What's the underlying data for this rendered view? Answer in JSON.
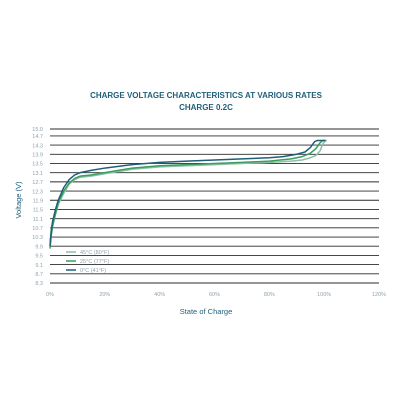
{
  "chart_data": {
    "type": "line",
    "title": "CHARGE VOLTAGE CHARACTERISTICS AT VARIOUS RATES",
    "subtitle": "CHARGE 0.2C",
    "xlabel": "State of Charge",
    "ylabel": "Voltage (V)",
    "xlim": [
      0,
      120
    ],
    "ylim": [
      8.3,
      15.0
    ],
    "x_ticks": [
      0,
      20,
      40,
      60,
      80,
      100,
      120
    ],
    "x_tick_labels": [
      "0%",
      "20%",
      "40%",
      "60%",
      "80%",
      "100%",
      "120%"
    ],
    "y_ticks": [
      8.3,
      8.7,
      9.1,
      9.5,
      9.9,
      10.3,
      10.7,
      11.1,
      11.5,
      11.9,
      12.3,
      12.7,
      13.1,
      13.5,
      13.9,
      14.3,
      14.7,
      15.0
    ],
    "y_tick_labels": [
      "8.3",
      "8.7",
      "9.1",
      "9.5",
      "9.9",
      "10.3",
      "10.7",
      "11.1",
      "11.5",
      "11.9",
      "12.3",
      "12.7",
      "13.1",
      "13.5",
      "13.9",
      "14.3",
      "14.7",
      "15.0"
    ],
    "grid": {
      "horizontal": true,
      "vertical": false
    },
    "legend_position": "lower-left",
    "series": [
      {
        "name": "45°C (80°F)",
        "color": "#8fbfa8",
        "x": [
          0,
          0.5,
          1,
          2,
          3,
          5,
          7,
          9,
          11,
          15,
          20,
          30,
          40,
          50,
          60,
          70,
          80,
          88,
          92,
          95,
          97,
          98.5,
          99.5,
          100.5,
          101
        ],
        "y": [
          10.1,
          10.7,
          11.0,
          11.3,
          11.7,
          12.2,
          12.6,
          12.8,
          12.9,
          12.95,
          13.05,
          13.25,
          13.35,
          13.4,
          13.45,
          13.5,
          13.55,
          13.6,
          13.65,
          13.75,
          13.85,
          14.05,
          14.35,
          14.5,
          14.5
        ]
      },
      {
        "name": "25°C (77°F)",
        "color": "#3a9e5e",
        "x": [
          0,
          0.5,
          1,
          2,
          3,
          5,
          7,
          9,
          11,
          15,
          20,
          30,
          40,
          50,
          60,
          70,
          80,
          88,
          92,
          95,
          97,
          98.5,
          99.5,
          100.5
        ],
        "y": [
          9.8,
          10.4,
          10.8,
          11.3,
          11.8,
          12.3,
          12.65,
          12.85,
          12.95,
          13.0,
          13.1,
          13.3,
          13.4,
          13.45,
          13.5,
          13.55,
          13.6,
          13.7,
          13.8,
          13.95,
          14.15,
          14.4,
          14.5,
          14.5
        ]
      },
      {
        "name": "0°C (41°F)",
        "color": "#1f5f7a",
        "x": [
          0,
          0.5,
          1,
          2,
          3,
          5,
          7,
          9,
          11,
          15,
          20,
          30,
          40,
          50,
          60,
          70,
          80,
          85,
          90,
          93,
          95,
          96.5,
          97.5,
          99.5,
          100.5
        ],
        "y": [
          9.9,
          10.6,
          11.0,
          11.5,
          11.9,
          12.45,
          12.8,
          13.0,
          13.1,
          13.2,
          13.3,
          13.45,
          13.55,
          13.6,
          13.65,
          13.7,
          13.75,
          13.8,
          13.9,
          14.0,
          14.2,
          14.45,
          14.5,
          14.5,
          14.5
        ]
      }
    ]
  }
}
